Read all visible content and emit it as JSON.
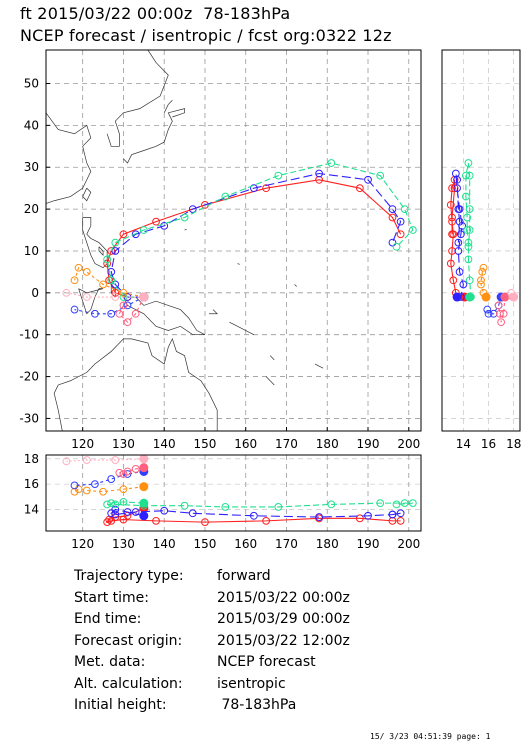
{
  "header": {
    "line1": "ft 2015/03/22 00:00z  78-183hPa",
    "line2": "NCEP forecast / isentropic / fcst org:0322 12z"
  },
  "map": {
    "xticks": [
      "120",
      "130",
      "140",
      "150",
      "160",
      "170",
      "180",
      "190",
      "200"
    ],
    "yticks": [
      "50",
      "40",
      "30",
      "20",
      "10",
      "0",
      "-10",
      "-20",
      "-30"
    ]
  },
  "side_panel": {
    "xticks": [
      "14",
      "16",
      "18"
    ]
  },
  "bottom_panel": {
    "xticks": [
      "120",
      "130",
      "140",
      "150",
      "160",
      "170",
      "180",
      "190",
      "200"
    ],
    "yticks": [
      "18",
      "16",
      "14"
    ]
  },
  "info": [
    {
      "key": "Trajectory type:",
      "value": "forward"
    },
    {
      "key": "Start time:",
      "value": "2015/03/22 00:00z"
    },
    {
      "key": "End time:",
      "value": "2015/03/29 00:00z"
    },
    {
      "key": "Forecast origin:",
      "value": "2015/03/22 12:00z"
    },
    {
      "key": "Met. data:",
      "value": "NCEP forecast"
    },
    {
      "key": "Alt. calculation:",
      "value": "isentropic"
    },
    {
      "key": "Initial height:",
      "value": " 78-183hPa"
    }
  ],
  "footer": "15/ 3/23 04:51:39 page: 1",
  "chart_data": {
    "type": "line",
    "xlim": [
      111,
      203
    ],
    "ylim": [
      -33,
      58
    ],
    "height_lim": [
      12.3,
      18.3
    ],
    "grid": true,
    "series": [
      {
        "color": "#ff2020",
        "dash": "",
        "points": [
          [
            135,
            -1,
            14.1
          ],
          [
            131,
            -1,
            13.5
          ],
          [
            128,
            0,
            13.4
          ],
          [
            126.5,
            3,
            13.2
          ],
          [
            126,
            7,
            13.0
          ],
          [
            127,
            10,
            13.1
          ],
          [
            130,
            14,
            13.2
          ],
          [
            138,
            17,
            13.1
          ],
          [
            150,
            21,
            13.0
          ],
          [
            165,
            25,
            13.1
          ],
          [
            178,
            27,
            13.3
          ],
          [
            188,
            25,
            13.3
          ],
          [
            196,
            18,
            13.1
          ],
          [
            198,
            14,
            13.1
          ]
        ]
      },
      {
        "color": "#3020ff",
        "dash": "9,4",
        "points": [
          [
            135,
            -1,
            13.5
          ],
          [
            131,
            -1,
            13.8
          ],
          [
            128,
            2,
            14.0
          ],
          [
            127,
            5,
            13.7
          ],
          [
            128,
            10,
            13.6
          ],
          [
            133,
            14,
            13.8
          ],
          [
            140,
            16,
            13.9
          ],
          [
            147,
            20,
            13.7
          ],
          [
            162,
            25,
            13.5
          ],
          [
            178,
            28.5,
            13.4
          ],
          [
            190,
            27,
            13.5
          ],
          [
            196,
            20,
            13.6
          ],
          [
            198,
            17,
            13.7
          ],
          [
            196,
            12,
            13.6
          ]
        ]
      },
      {
        "color": "#20e090",
        "dash": "6,3",
        "points": [
          [
            135,
            -1,
            14.5
          ],
          [
            130,
            -1,
            14.6
          ],
          [
            127,
            3,
            14.5
          ],
          [
            126,
            8,
            14.4
          ],
          [
            128,
            12,
            14.4
          ],
          [
            135,
            15,
            14.3
          ],
          [
            145,
            18,
            14.3
          ],
          [
            155,
            23,
            14.2
          ],
          [
            168,
            28,
            14.2
          ],
          [
            181,
            31,
            14.4
          ],
          [
            193,
            28,
            14.5
          ],
          [
            199,
            20,
            14.5
          ],
          [
            201,
            15,
            14.5
          ],
          [
            197,
            11,
            14.4
          ]
        ]
      },
      {
        "color": "#ff9010",
        "dash": "3,3",
        "points": [
          [
            135,
            -1,
            15.8
          ],
          [
            130,
            0,
            15.6
          ],
          [
            125,
            2,
            15.4
          ],
          [
            121,
            5,
            15.5
          ],
          [
            119,
            6,
            15.6
          ],
          [
            118,
            3,
            15.4
          ]
        ]
      },
      {
        "color": "#3040ff",
        "dash": "3,3",
        "points": [
          [
            135,
            -1,
            17.0
          ],
          [
            131,
            -3,
            16.8
          ],
          [
            127,
            -5,
            16.4
          ],
          [
            123,
            -5,
            16.0
          ],
          [
            118,
            -4,
            15.9
          ]
        ]
      },
      {
        "color": "#ff6080",
        "dash": "3,3",
        "points": [
          [
            135,
            -1,
            17.3
          ],
          [
            133,
            -5,
            17.2
          ],
          [
            131,
            -7,
            17.0
          ],
          [
            129,
            -5,
            16.9
          ],
          [
            130,
            -3,
            16.8
          ]
        ]
      },
      {
        "color": "#ffb0c0",
        "dash": "2,2",
        "points": [
          [
            135,
            -1,
            18.0
          ],
          [
            128,
            -1,
            17.9
          ],
          [
            121,
            -1,
            17.9
          ],
          [
            116,
            0,
            17.8
          ]
        ]
      }
    ]
  }
}
